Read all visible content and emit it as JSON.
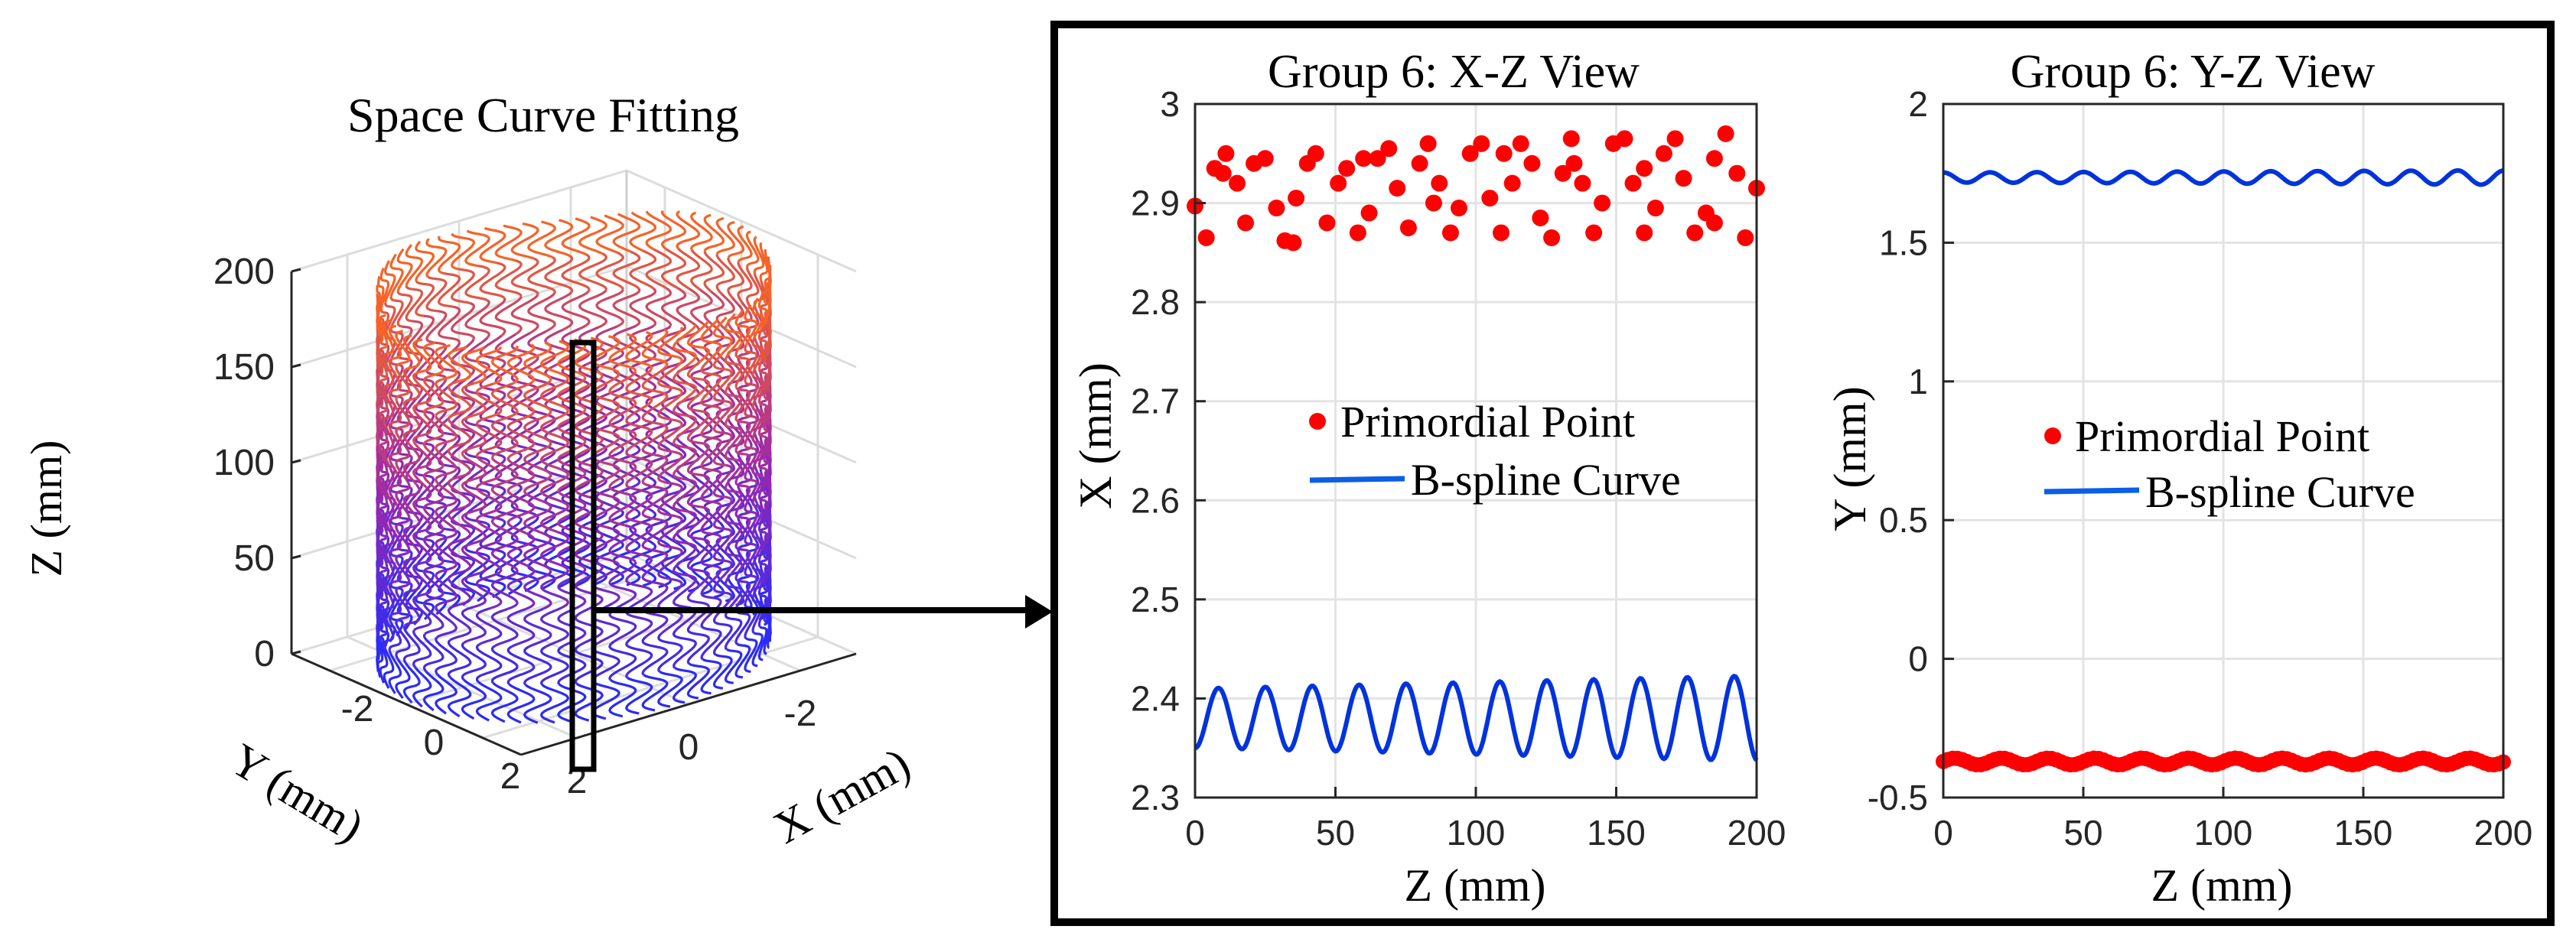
{
  "chart_data": [
    {
      "type": "line",
      "title": "Space Curve Fitting",
      "xlabel": "X (mm)",
      "ylabel": "Y (mm)",
      "zlabel": "Z (mm)",
      "projection": "3d",
      "xticks": [
        "-2",
        "0",
        "2"
      ],
      "yticks": [
        "-2",
        "0",
        "2"
      ],
      "zticks": [
        "0",
        "50",
        "100",
        "150",
        "200"
      ],
      "xlim": [
        -3,
        3
      ],
      "ylim": [
        -3,
        3
      ],
      "zlim": [
        0,
        200
      ],
      "cylinder_radius": 2.9,
      "curve_count": 72,
      "color_low": "#1f2bff",
      "color_high": "#ff6a1a",
      "grid": true
    },
    {
      "type": "scatter",
      "title": "Group 6: X-Z View",
      "xlabel": "Z (mm)",
      "ylabel": "X (mm)",
      "xlim": [
        0,
        200
      ],
      "ylim": [
        2.3,
        3.0
      ],
      "xticks": [
        "0",
        "50",
        "100",
        "150",
        "200"
      ],
      "yticks": [
        "2.3",
        "2.4",
        "2.5",
        "2.6",
        "2.7",
        "2.8",
        "2.9",
        "3"
      ],
      "legend": "center",
      "grid": true,
      "series": [
        {
          "name": "Primordial Point",
          "kind": "scatter",
          "color": "#ff0000",
          "x": [
            0,
            4,
            7,
            11,
            15,
            18,
            21,
            25,
            29,
            32,
            36,
            40,
            43,
            47,
            51,
            54,
            58,
            62,
            65,
            69,
            72,
            76,
            80,
            83,
            87,
            91,
            94,
            98,
            102,
            105,
            109,
            113,
            116,
            120,
            123,
            127,
            131,
            134,
            138,
            142,
            145,
            149,
            153,
            156,
            160,
            164,
            167,
            171,
            174,
            178,
            182,
            185,
            189,
            193,
            196,
            200,
            10,
            35,
            60,
            85,
            110,
            135,
            160,
            185
          ],
          "y": [
            2.897,
            2.865,
            2.935,
            2.95,
            2.92,
            2.88,
            2.94,
            2.945,
            2.895,
            2.862,
            2.905,
            2.94,
            2.95,
            2.88,
            2.92,
            2.935,
            2.87,
            2.89,
            2.945,
            2.955,
            2.915,
            2.875,
            2.94,
            2.96,
            2.92,
            2.87,
            2.895,
            2.95,
            2.96,
            2.905,
            2.87,
            2.92,
            2.96,
            2.94,
            2.885,
            2.865,
            2.93,
            2.965,
            2.92,
            2.87,
            2.9,
            2.96,
            2.965,
            2.92,
            2.87,
            2.895,
            2.95,
            2.965,
            2.925,
            2.87,
            2.89,
            2.945,
            2.97,
            2.93,
            2.865,
            2.915,
            2.93,
            2.86,
            2.945,
            2.9,
            2.95,
            2.94,
            2.935,
            2.88
          ]
        },
        {
          "name": "B-spline Curve",
          "kind": "line",
          "color": "#0033dd",
          "baseline": 2.38,
          "amplitude_start": 0.03,
          "amplitude_end": 0.043,
          "period": 16.7,
          "phase_deg": 180,
          "x_range": [
            0,
            200
          ]
        }
      ]
    },
    {
      "type": "line",
      "title": "Group 6: Y-Z View",
      "xlabel": "Z (mm)",
      "ylabel": "Y (mm)",
      "xlim": [
        0,
        200
      ],
      "ylim": [
        -0.5,
        2.0
      ],
      "xticks": [
        "0",
        "50",
        "100",
        "150",
        "200"
      ],
      "yticks": [
        "-0.5",
        "0",
        "0.5",
        "1",
        "1.5",
        "2"
      ],
      "legend": "center",
      "grid": true,
      "series": [
        {
          "name": "Primordial Point",
          "kind": "scatter",
          "color": "#ff0000",
          "baseline": -0.37,
          "amplitude": 0.012,
          "count": 120
        },
        {
          "name": "B-spline Curve",
          "kind": "line",
          "color": "#0033dd",
          "baseline": 1.735,
          "amplitude_start": 0.018,
          "amplitude_end": 0.026,
          "period": 16.7,
          "phase_deg": 0,
          "x_range": [
            0,
            200
          ]
        }
      ]
    }
  ]
}
